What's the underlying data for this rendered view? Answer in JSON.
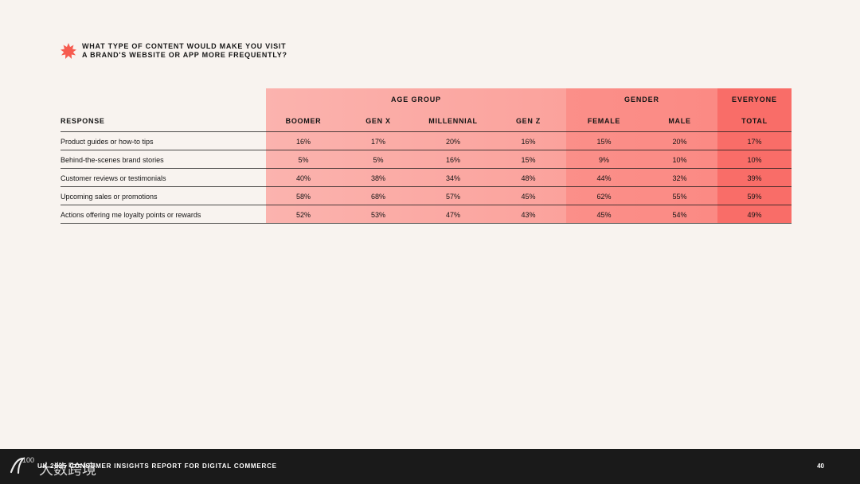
{
  "question": {
    "line1": "WHAT TYPE OF CONTENT WOULD MAKE YOU VISIT",
    "line2": "A BRAND'S WEBSITE OR APP MORE FREQUENTLY?"
  },
  "table": {
    "groups": {
      "age": "AGE GROUP",
      "gender": "GENDER",
      "everyone": "EVERYONE"
    },
    "headers": [
      "RESPONSE",
      "BOOMER",
      "GEN X",
      "MILLENNIAL",
      "GEN Z",
      "FEMALE",
      "MALE",
      "TOTAL"
    ],
    "rows": [
      {
        "response": "Product guides or how-to tips",
        "values": [
          "16%",
          "17%",
          "20%",
          "16%",
          "15%",
          "20%",
          "17%"
        ]
      },
      {
        "response": "Behind-the-scenes brand stories",
        "values": [
          "5%",
          "5%",
          "16%",
          "15%",
          "9%",
          "10%",
          "10%"
        ]
      },
      {
        "response": "Customer reviews or testimonials",
        "values": [
          "40%",
          "38%",
          "34%",
          "48%",
          "44%",
          "32%",
          "39%"
        ]
      },
      {
        "response": "Upcoming sales or promotions",
        "values": [
          "58%",
          "68%",
          "57%",
          "45%",
          "62%",
          "55%",
          "59%"
        ]
      },
      {
        "response": "Actions offering me loyalty points or rewards",
        "values": [
          "52%",
          "53%",
          "47%",
          "43%",
          "45%",
          "54%",
          "49%"
        ]
      }
    ]
  },
  "footer": {
    "report": "UK 2025 CONSUMER INSIGHTS REPORT FOR DIGITAL COMMERCE",
    "page": "40",
    "watermark": "100 大数跨境"
  },
  "colors": {
    "background": "#f8f3ef",
    "age_band": "#fbb3ae",
    "gender_band": "#fb8f89",
    "everyone_band": "#f96d68",
    "footer": "#1a1a1a",
    "badge": "#f65b4f"
  },
  "icons": {
    "question_badge": "starburst-icon",
    "watermark_logo": "watermark-logo-icon"
  }
}
